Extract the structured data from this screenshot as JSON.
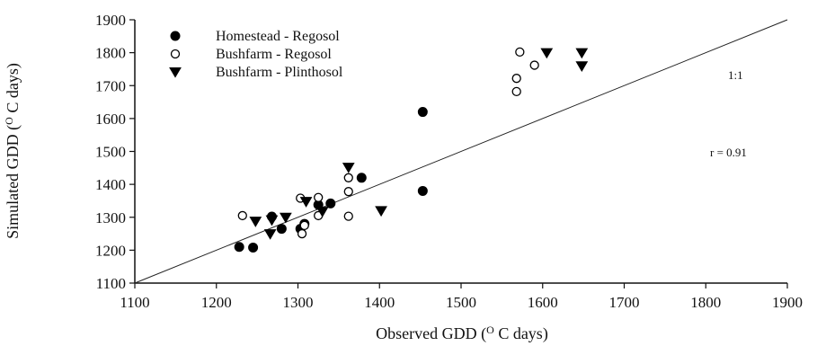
{
  "chart_data": {
    "type": "scatter",
    "title": "",
    "xlabel": "Observed GDD (",
    "xlabel_sup": "O",
    "xlabel_tail": " C days)",
    "ylabel": "Simulated GDD (",
    "ylabel_sup": "O",
    "ylabel_tail": " C days)",
    "xlim": [
      1100,
      1900
    ],
    "ylim": [
      1100,
      1900
    ],
    "xticks": [
      1100,
      1200,
      1300,
      1400,
      1500,
      1600,
      1700,
      1800,
      1900
    ],
    "yticks": [
      1100,
      1200,
      1300,
      1400,
      1500,
      1600,
      1700,
      1800,
      1900
    ],
    "grid": false,
    "legend_position": "top-left",
    "reference_line": {
      "label": "1:1",
      "x": [
        1100,
        1900
      ],
      "y": [
        1100,
        1900
      ]
    },
    "annotations": [
      {
        "text": "r = 0.91"
      }
    ],
    "series": [
      {
        "name": "Homestead - Regosol",
        "marker": "filled-circle",
        "points": [
          [
            1228,
            1210
          ],
          [
            1245,
            1208
          ],
          [
            1268,
            1302
          ],
          [
            1280,
            1265
          ],
          [
            1303,
            1265
          ],
          [
            1308,
            1280
          ],
          [
            1325,
            1338
          ],
          [
            1340,
            1342
          ],
          [
            1378,
            1420
          ],
          [
            1453,
            1620
          ],
          [
            1453,
            1380
          ]
        ]
      },
      {
        "name": "Bushfarm - Regosol",
        "marker": "open-circle",
        "points": [
          [
            1232,
            1305
          ],
          [
            1303,
            1358
          ],
          [
            1305,
            1250
          ],
          [
            1308,
            1275
          ],
          [
            1325,
            1360
          ],
          [
            1325,
            1305
          ],
          [
            1362,
            1420
          ],
          [
            1362,
            1378
          ],
          [
            1362,
            1303
          ],
          [
            1568,
            1722
          ],
          [
            1568,
            1682
          ],
          [
            1572,
            1802
          ],
          [
            1590,
            1762
          ]
        ]
      },
      {
        "name": "Bushfarm - Plinthosol",
        "marker": "filled-triangle-down",
        "points": [
          [
            1248,
            1288
          ],
          [
            1266,
            1250
          ],
          [
            1268,
            1292
          ],
          [
            1285,
            1300
          ],
          [
            1310,
            1348
          ],
          [
            1330,
            1318
          ],
          [
            1362,
            1452
          ],
          [
            1402,
            1320
          ],
          [
            1605,
            1800
          ],
          [
            1648,
            1800
          ],
          [
            1648,
            1760
          ]
        ]
      }
    ]
  }
}
